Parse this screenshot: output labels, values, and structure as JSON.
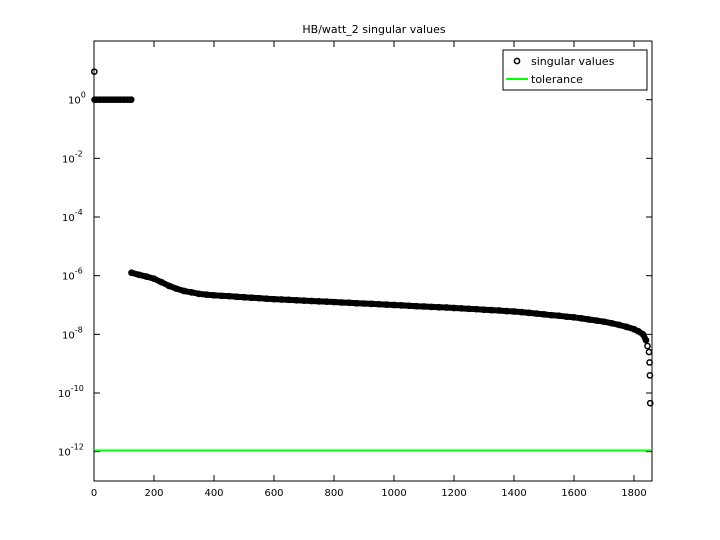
{
  "chart_data": {
    "type": "scatter",
    "title": "HB/watt_2 singular values",
    "xlabel": "",
    "ylabel": "",
    "xlim": [
      0,
      1860
    ],
    "ylim": [
      1e-13,
      100
    ],
    "yscale": "log",
    "grid": false,
    "legend_position": "top-right",
    "x_ticks": [
      0,
      200,
      400,
      600,
      800,
      1000,
      1200,
      1400,
      1600,
      1800
    ],
    "x_tick_labels": [
      "0",
      "200",
      "400",
      "600",
      "800",
      "1000",
      "1200",
      "1400",
      "1600",
      "1800"
    ],
    "y_ticks": [
      1,
      0.01,
      0.0001,
      1e-06,
      1e-08,
      1e-10,
      1e-12
    ],
    "y_tick_labels": [
      {
        "base": "10",
        "exp": "0"
      },
      {
        "base": "10",
        "exp": "-2"
      },
      {
        "base": "10",
        "exp": "-4"
      },
      {
        "base": "10",
        "exp": "-6"
      },
      {
        "base": "10",
        "exp": "-8"
      },
      {
        "base": "10",
        "exp": "-10"
      },
      {
        "base": "10",
        "exp": "-12"
      }
    ],
    "series": [
      {
        "name": "singular values",
        "marker": "circle",
        "color": "#000000",
        "x": [
          1,
          2,
          10,
          20,
          30,
          40,
          50,
          60,
          70,
          80,
          90,
          100,
          110,
          120,
          124,
          125,
          150,
          175,
          200,
          225,
          250,
          275,
          300,
          325,
          350,
          375,
          400,
          425,
          450,
          475,
          500,
          525,
          550,
          575,
          600,
          625,
          650,
          675,
          700,
          725,
          750,
          775,
          800,
          825,
          850,
          875,
          900,
          925,
          950,
          975,
          1000,
          1025,
          1050,
          1075,
          1100,
          1125,
          1150,
          1175,
          1200,
          1225,
          1250,
          1275,
          1300,
          1325,
          1350,
          1375,
          1400,
          1425,
          1450,
          1475,
          1500,
          1525,
          1550,
          1575,
          1600,
          1625,
          1650,
          1675,
          1700,
          1725,
          1750,
          1775,
          1800,
          1815,
          1830,
          1840,
          1845,
          1850,
          1852,
          1853,
          1854
        ],
        "y": [
          9,
          1,
          1,
          1,
          1,
          1,
          1,
          1,
          1,
          1,
          1,
          1,
          1,
          1,
          1,
          1.26e-06,
          1.07e-06,
          9.3e-07,
          7.9e-07,
          6e-07,
          4.5e-07,
          3.6e-07,
          3e-07,
          2.7e-07,
          2.4e-07,
          2.26e-07,
          2.14e-07,
          2.06e-07,
          2e-07,
          1.91e-07,
          1.84e-07,
          1.77e-07,
          1.71e-07,
          1.64e-07,
          1.58e-07,
          1.54e-07,
          1.5e-07,
          1.45e-07,
          1.41e-07,
          1.37e-07,
          1.33e-07,
          1.3e-07,
          1.26e-07,
          1.22e-07,
          1.19e-07,
          1.15e-07,
          1.12e-07,
          1.09e-07,
          1.06e-07,
          1.03e-07,
          1e-07,
          9.7e-08,
          9.4e-08,
          9.1e-08,
          8.9e-08,
          8.6e-08,
          8.4e-08,
          8.2e-08,
          7.9e-08,
          7.7e-08,
          7.4e-08,
          7.2e-08,
          6.9e-08,
          6.7e-08,
          6.5e-08,
          6.2e-08,
          6e-08,
          5.7e-08,
          5.4e-08,
          5.1e-08,
          4.8e-08,
          4.5e-08,
          4.3e-08,
          4e-08,
          3.8e-08,
          3.5e-08,
          3.2e-08,
          2.95e-08,
          2.7e-08,
          2.4e-08,
          2.1e-08,
          1.8e-08,
          1.5e-08,
          1.26e-08,
          1e-08,
          6.3e-09,
          4e-09,
          2.5e-09,
          1.1e-09,
          4e-10,
          4.5e-11
        ]
      },
      {
        "name": "tolerance",
        "type": "line",
        "color": "#00ff00",
        "y": 1.1e-12
      }
    ]
  }
}
